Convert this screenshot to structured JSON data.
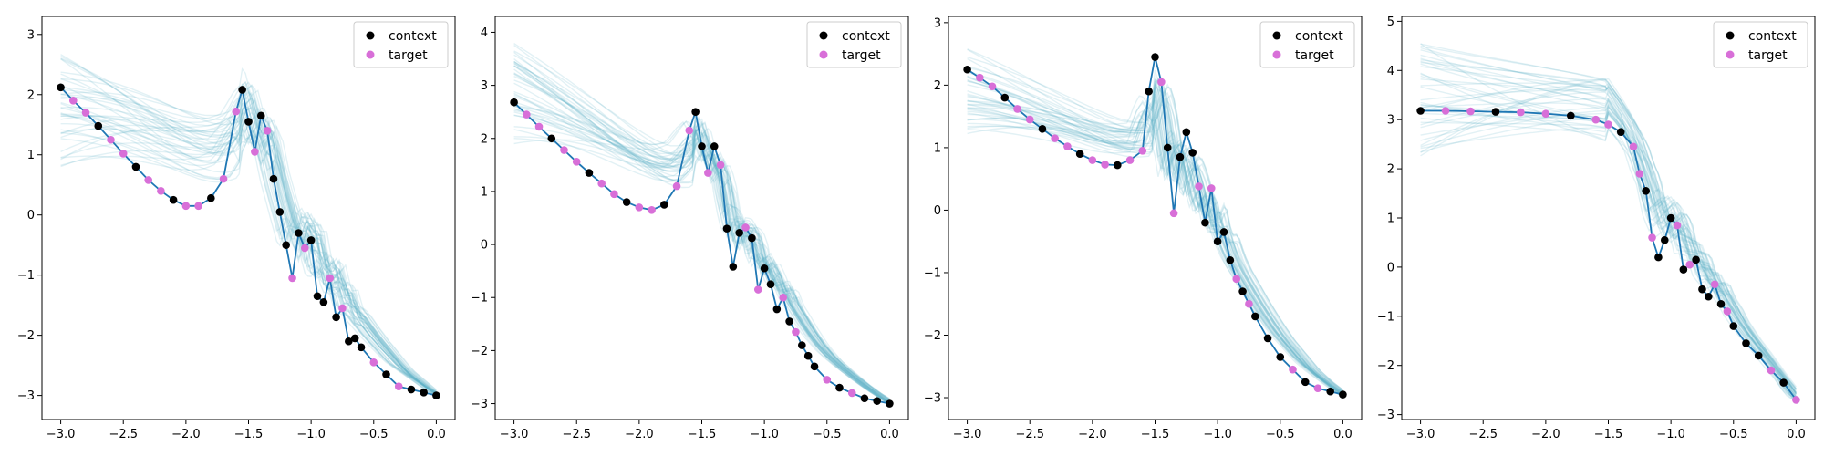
{
  "figure": {
    "colors": {
      "context": "#000000",
      "target": "#d86fd8",
      "mean_line": "#1f77b4",
      "samples": "#5fb3c8"
    },
    "legend_labels": {
      "context": "context",
      "target": "target"
    },
    "legend_placement": "top-right"
  },
  "chart_data": [
    {
      "type": "line",
      "xlim": [
        -3.15,
        0.15
      ],
      "ylim": [
        -3.4,
        3.3
      ],
      "x_ticks": [
        -3.0,
        -2.5,
        -2.0,
        -1.5,
        -1.0,
        -0.5,
        0.0
      ],
      "y_ticks": [
        -3,
        -2,
        -1,
        0,
        1,
        2,
        3
      ],
      "x_tick_labels": [
        "−3.0",
        "−2.5",
        "−2.0",
        "−1.5",
        "−1.0",
        "−0.5",
        "0.0"
      ],
      "y_tick_labels": [
        "−3",
        "−2",
        "−1",
        "0",
        "1",
        "2",
        "3"
      ],
      "grid": false,
      "samples_band": {
        "left": [
          0.8,
          2.7
        ],
        "mid_x": -1.55,
        "mid": [
          0.5,
          2.3
        ],
        "right": [
          -3.05,
          -2.85
        ]
      },
      "series": [
        {
          "points": [
            [
              -3.0,
              2.12
            ],
            [
              -2.9,
              1.9
            ],
            [
              -2.8,
              1.7
            ],
            [
              -2.7,
              1.48
            ],
            [
              -2.6,
              1.25
            ],
            [
              -2.5,
              1.02
            ],
            [
              -2.4,
              0.8
            ],
            [
              -2.3,
              0.58
            ],
            [
              -2.2,
              0.4
            ],
            [
              -2.1,
              0.25
            ],
            [
              -2.0,
              0.15
            ],
            [
              -1.9,
              0.15
            ],
            [
              -1.8,
              0.28
            ],
            [
              -1.7,
              0.6
            ],
            [
              -1.6,
              1.72
            ],
            [
              -1.55,
              2.08
            ],
            [
              -1.5,
              1.55
            ],
            [
              -1.45,
              1.05
            ],
            [
              -1.4,
              1.65
            ],
            [
              -1.35,
              1.4
            ],
            [
              -1.3,
              0.6
            ],
            [
              -1.25,
              0.05
            ],
            [
              -1.2,
              -0.5
            ],
            [
              -1.15,
              -1.05
            ],
            [
              -1.1,
              -0.3
            ],
            [
              -1.05,
              -0.55
            ],
            [
              -1.0,
              -0.42
            ],
            [
              -0.95,
              -1.35
            ],
            [
              -0.9,
              -1.45
            ],
            [
              -0.85,
              -1.05
            ],
            [
              -0.8,
              -1.7
            ],
            [
              -0.75,
              -1.55
            ],
            [
              -0.7,
              -2.1
            ],
            [
              -0.65,
              -2.05
            ],
            [
              -0.6,
              -2.2
            ],
            [
              -0.5,
              -2.45
            ],
            [
              -0.4,
              -2.65
            ],
            [
              -0.3,
              -2.85
            ],
            [
              -0.2,
              -2.9
            ],
            [
              -0.1,
              -2.95
            ],
            [
              0.0,
              -3.0
            ]
          ]
        }
      ]
    },
    {
      "type": "line",
      "xlim": [
        -3.15,
        0.15
      ],
      "ylim": [
        -3.3,
        4.3
      ],
      "x_ticks": [
        -3.0,
        -2.5,
        -2.0,
        -1.5,
        -1.0,
        -0.5,
        0.0
      ],
      "y_ticks": [
        -3,
        -2,
        -1,
        0,
        1,
        2,
        3,
        4
      ],
      "x_tick_labels": [
        "−3.0",
        "−2.5",
        "−2.0",
        "−1.5",
        "−1.0",
        "−0.5",
        "0.0"
      ],
      "y_tick_labels": [
        "−3",
        "−2",
        "−1",
        "0",
        "1",
        "2",
        "3",
        "4"
      ],
      "grid": false,
      "samples_band": {
        "left": [
          1.8,
          3.8
        ],
        "mid_x": -1.55,
        "mid": [
          1.0,
          2.3
        ],
        "right": [
          -3.05,
          -2.85
        ]
      },
      "series": [
        {
          "points": [
            [
              -3.0,
              2.68
            ],
            [
              -2.9,
              2.45
            ],
            [
              -2.8,
              2.22
            ],
            [
              -2.7,
              2.0
            ],
            [
              -2.6,
              1.78
            ],
            [
              -2.5,
              1.56
            ],
            [
              -2.4,
              1.35
            ],
            [
              -2.3,
              1.15
            ],
            [
              -2.2,
              0.95
            ],
            [
              -2.1,
              0.8
            ],
            [
              -2.0,
              0.7
            ],
            [
              -1.9,
              0.65
            ],
            [
              -1.8,
              0.75
            ],
            [
              -1.7,
              1.1
            ],
            [
              -1.6,
              2.15
            ],
            [
              -1.55,
              2.5
            ],
            [
              -1.5,
              1.85
            ],
            [
              -1.45,
              1.35
            ],
            [
              -1.4,
              1.85
            ],
            [
              -1.35,
              1.5
            ],
            [
              -1.3,
              0.3
            ],
            [
              -1.25,
              -0.42
            ],
            [
              -1.2,
              0.22
            ],
            [
              -1.15,
              0.32
            ],
            [
              -1.1,
              0.12
            ],
            [
              -1.05,
              -0.85
            ],
            [
              -1.0,
              -0.45
            ],
            [
              -0.95,
              -0.75
            ],
            [
              -0.9,
              -1.22
            ],
            [
              -0.85,
              -1.0
            ],
            [
              -0.8,
              -1.45
            ],
            [
              -0.75,
              -1.65
            ],
            [
              -0.7,
              -1.9
            ],
            [
              -0.65,
              -2.1
            ],
            [
              -0.6,
              -2.3
            ],
            [
              -0.5,
              -2.55
            ],
            [
              -0.4,
              -2.7
            ],
            [
              -0.3,
              -2.8
            ],
            [
              -0.2,
              -2.9
            ],
            [
              -0.1,
              -2.95
            ],
            [
              0.0,
              -3.0
            ]
          ]
        }
      ]
    },
    {
      "type": "line",
      "xlim": [
        -3.15,
        0.15
      ],
      "ylim": [
        -3.35,
        3.1
      ],
      "x_ticks": [
        -3.0,
        -2.5,
        -2.0,
        -1.5,
        -1.0,
        -0.5,
        0.0
      ],
      "y_ticks": [
        -3,
        -2,
        -1,
        0,
        1,
        2,
        3
      ],
      "x_tick_labels": [
        "−3.0",
        "−2.5",
        "−2.0",
        "−1.5",
        "−1.0",
        "−0.5",
        "0.0"
      ],
      "y_tick_labels": [
        "−3",
        "−2",
        "−1",
        "0",
        "1",
        "2",
        "3"
      ],
      "grid": false,
      "samples_band": {
        "left": [
          1.2,
          2.6
        ],
        "mid_x": -1.5,
        "mid": [
          0.8,
          1.6
        ],
        "right": [
          -3.05,
          -2.85
        ]
      },
      "series": [
        {
          "points": [
            [
              -3.0,
              2.25
            ],
            [
              -2.9,
              2.12
            ],
            [
              -2.8,
              1.98
            ],
            [
              -2.7,
              1.8
            ],
            [
              -2.6,
              1.62
            ],
            [
              -2.5,
              1.45
            ],
            [
              -2.4,
              1.3
            ],
            [
              -2.3,
              1.15
            ],
            [
              -2.2,
              1.02
            ],
            [
              -2.1,
              0.9
            ],
            [
              -2.0,
              0.8
            ],
            [
              -1.9,
              0.73
            ],
            [
              -1.8,
              0.72
            ],
            [
              -1.7,
              0.8
            ],
            [
              -1.6,
              0.95
            ],
            [
              -1.55,
              1.9
            ],
            [
              -1.5,
              2.45
            ],
            [
              -1.45,
              2.05
            ],
            [
              -1.4,
              1.0
            ],
            [
              -1.35,
              -0.05
            ],
            [
              -1.3,
              0.85
            ],
            [
              -1.25,
              1.25
            ],
            [
              -1.2,
              0.92
            ],
            [
              -1.15,
              0.38
            ],
            [
              -1.1,
              -0.2
            ],
            [
              -1.05,
              0.35
            ],
            [
              -1.0,
              -0.5
            ],
            [
              -0.95,
              -0.35
            ],
            [
              -0.9,
              -0.8
            ],
            [
              -0.85,
              -1.1
            ],
            [
              -0.8,
              -1.3
            ],
            [
              -0.75,
              -1.5
            ],
            [
              -0.7,
              -1.7
            ],
            [
              -0.6,
              -2.05
            ],
            [
              -0.5,
              -2.35
            ],
            [
              -0.4,
              -2.55
            ],
            [
              -0.3,
              -2.75
            ],
            [
              -0.2,
              -2.85
            ],
            [
              -0.1,
              -2.9
            ],
            [
              0.0,
              -2.95
            ]
          ]
        }
      ]
    },
    {
      "type": "line",
      "xlim": [
        -3.15,
        0.15
      ],
      "ylim": [
        -3.1,
        5.1
      ],
      "x_ticks": [
        -3.0,
        -2.5,
        -2.0,
        -1.5,
        -1.0,
        -0.5,
        0.0
      ],
      "y_ticks": [
        -3,
        -2,
        -1,
        0,
        1,
        2,
        3,
        4,
        5
      ],
      "x_tick_labels": [
        "−3.0",
        "−2.5",
        "−2.0",
        "−1.5",
        "−1.0",
        "−0.5",
        "0.0"
      ],
      "y_tick_labels": [
        "−3",
        "−2",
        "−1",
        "0",
        "1",
        "2",
        "3",
        "4",
        "5"
      ],
      "grid": false,
      "samples_band": {
        "left": [
          2.2,
          4.6
        ],
        "mid_x": -1.5,
        "mid": [
          2.2,
          4.4
        ],
        "right": [
          -2.8,
          -2.55
        ]
      },
      "series": [
        {
          "points": [
            [
              -3.0,
              3.18
            ],
            [
              -2.8,
              3.18
            ],
            [
              -2.6,
              3.17
            ],
            [
              -2.4,
              3.16
            ],
            [
              -2.2,
              3.15
            ],
            [
              -2.0,
              3.12
            ],
            [
              -1.8,
              3.08
            ],
            [
              -1.6,
              3.0
            ],
            [
              -1.5,
              2.9
            ],
            [
              -1.4,
              2.75
            ],
            [
              -1.3,
              2.45
            ],
            [
              -1.25,
              1.9
            ],
            [
              -1.2,
              1.55
            ],
            [
              -1.15,
              0.6
            ],
            [
              -1.1,
              0.2
            ],
            [
              -1.05,
              0.55
            ],
            [
              -1.0,
              1.0
            ],
            [
              -0.95,
              0.85
            ],
            [
              -0.9,
              -0.05
            ],
            [
              -0.85,
              0.05
            ],
            [
              -0.8,
              0.15
            ],
            [
              -0.75,
              -0.45
            ],
            [
              -0.7,
              -0.6
            ],
            [
              -0.65,
              -0.35
            ],
            [
              -0.6,
              -0.75
            ],
            [
              -0.55,
              -0.9
            ],
            [
              -0.5,
              -1.2
            ],
            [
              -0.4,
              -1.55
            ],
            [
              -0.3,
              -1.8
            ],
            [
              -0.2,
              -2.1
            ],
            [
              -0.1,
              -2.35
            ],
            [
              0.0,
              -2.7
            ]
          ]
        }
      ]
    }
  ]
}
